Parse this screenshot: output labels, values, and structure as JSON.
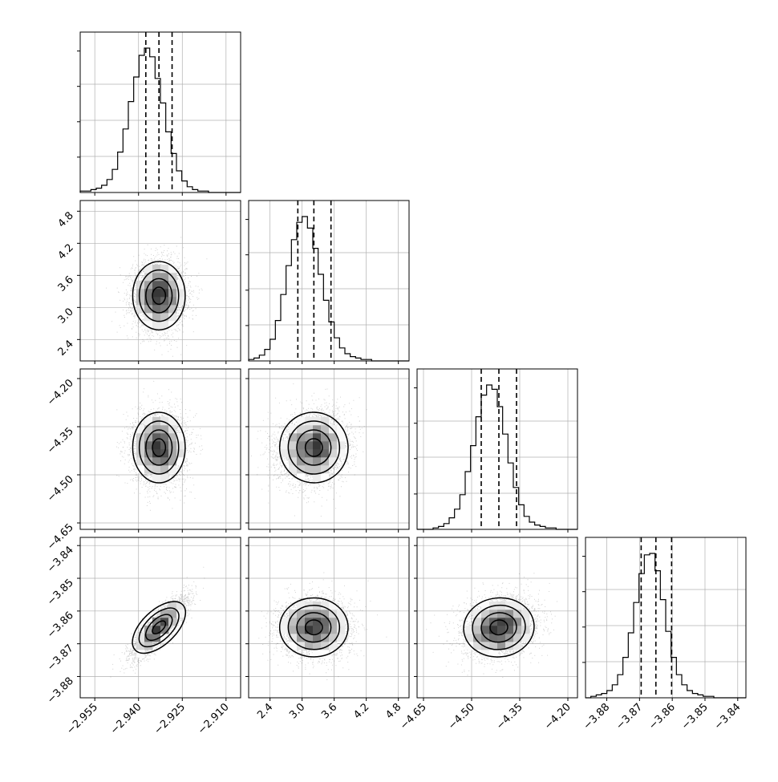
{
  "chart_data": {
    "type": "corner",
    "title": "",
    "colors": {
      "axes": "#000000",
      "grid": "#b0b0b0",
      "contour": "#000000",
      "hist": "#000000",
      "points": "#000000"
    },
    "grid": true,
    "quantile_style": "dashed",
    "parameters": [
      {
        "range": [
          -2.96,
          -2.905
        ],
        "ticks": [
          -2.955,
          -2.94,
          -2.925,
          -2.91
        ],
        "tick_labels": [
          "−2.955",
          "−2.940",
          "−2.925",
          "−2.910"
        ],
        "mean": -2.933,
        "sd": 0.0045,
        "quantiles": [
          -2.9375,
          -2.933,
          -2.9285
        ]
      },
      {
        "range": [
          2.0,
          5.0
        ],
        "ticks": [
          2.4,
          3.0,
          3.6,
          4.2,
          4.8
        ],
        "tick_labels": [
          "2.4",
          "3.0",
          "3.6",
          "4.2",
          "4.8"
        ],
        "mean": 3.22,
        "sd": 0.32,
        "quantiles": [
          2.92,
          3.22,
          3.54
        ]
      },
      {
        "range": [
          -4.67,
          -4.17
        ],
        "ticks": [
          -4.65,
          -4.5,
          -4.35,
          -4.2
        ],
        "tick_labels": [
          "−4.65",
          "−4.50",
          "−4.35",
          "−4.20"
        ],
        "mean": -4.415,
        "sd": 0.055,
        "quantiles": [
          -4.47,
          -4.415,
          -4.36
        ]
      },
      {
        "range": [
          -3.8865,
          -3.8375
        ],
        "ticks": [
          -3.88,
          -3.87,
          -3.86,
          -3.85,
          -3.84
        ],
        "tick_labels": [
          "−3.88",
          "−3.87",
          "−3.86",
          "−3.85",
          "−3.84"
        ],
        "mean": -3.865,
        "sd": 0.0045,
        "quantiles": [
          -3.8695,
          -3.865,
          -3.8602
        ]
      }
    ],
    "histograms": [
      {
        "bins": 30,
        "counts": [
          1,
          1,
          2,
          3,
          5,
          9,
          16,
          28,
          44,
          63,
          80,
          95,
          100,
          94,
          79,
          62,
          42,
          27,
          15,
          8,
          4,
          2,
          1,
          1,
          0,
          0,
          0,
          0,
          0,
          0
        ]
      },
      {
        "bins": 30,
        "counts": [
          1,
          2,
          4,
          8,
          15,
          28,
          46,
          66,
          84,
          96,
          100,
          92,
          78,
          60,
          42,
          27,
          16,
          9,
          5,
          3,
          2,
          1,
          1,
          0,
          0,
          0,
          0,
          0,
          0,
          0
        ]
      },
      {
        "bins": 30,
        "counts": [
          0,
          0,
          0,
          1,
          2,
          4,
          8,
          14,
          24,
          40,
          58,
          78,
          93,
          100,
          97,
          85,
          66,
          46,
          29,
          17,
          9,
          5,
          3,
          2,
          1,
          1,
          0,
          0,
          0,
          0
        ]
      },
      {
        "bins": 30,
        "counts": [
          0,
          1,
          2,
          3,
          5,
          9,
          16,
          28,
          45,
          66,
          86,
          99,
          100,
          88,
          68,
          46,
          28,
          16,
          9,
          5,
          3,
          2,
          1,
          1,
          0,
          0,
          0,
          0,
          0,
          0
        ]
      }
    ],
    "correlations": {
      "1-0": 0.0,
      "2-0": 0.0,
      "2-1": 0.15,
      "3-0": 0.85,
      "3-1": 0.0,
      "3-2": 0.2
    },
    "samples_shown": 4000
  }
}
